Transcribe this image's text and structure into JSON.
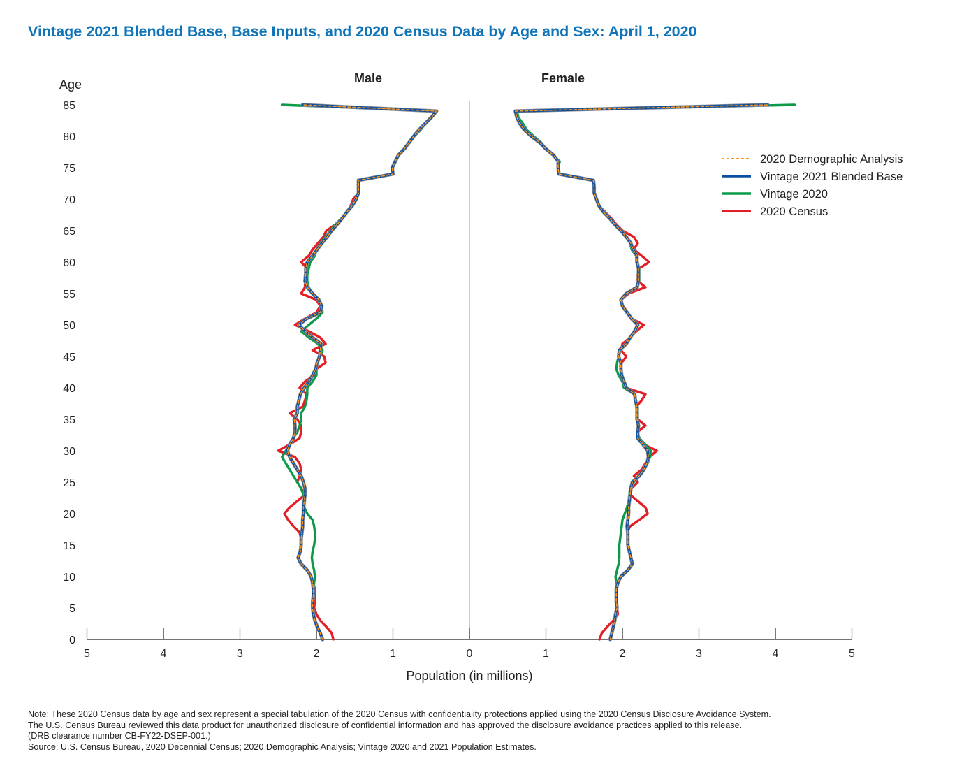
{
  "title": "Vintage 2021 Blended Base, Base Inputs, and 2020 Census Data by Age and Sex: April 1, 2020",
  "notes": {
    "line1": "Note: These 2020 Census data by age and sex represent a special tabulation of the 2020 Census with confidentiality protections applied using the 2020 Census Disclosure Avoidance System.",
    "line2": "The U.S. Census Bureau reviewed this data product for unauthorized disclosure of confidential information and has approved the disclosure avoidance practices applied to this release.",
    "line3": "(DRB clearance number CB-FY22-DSEP-001.)",
    "source": "Source: U.S. Census Bureau, 2020 Decennial Census; 2020 Demographic Analysis; Vintage 2020 and 2021 Population Estimates."
  },
  "chart_data": {
    "type": "line",
    "orientation": "horizontal-population-pyramid",
    "panels": [
      "Male",
      "Female"
    ],
    "xlabel": "Population (in millions)",
    "ylabel": "Age",
    "x_ticks": [
      5,
      4,
      3,
      2,
      1,
      0,
      1,
      2,
      3,
      4,
      5
    ],
    "y_ticks": [
      0,
      5,
      10,
      15,
      20,
      25,
      30,
      35,
      40,
      45,
      50,
      55,
      60,
      65,
      70,
      75,
      80,
      85
    ],
    "xlim": [
      0,
      5
    ],
    "ylim": [
      0,
      85
    ],
    "grid": false,
    "legend_position": "top-right",
    "ages": [
      0,
      1,
      2,
      3,
      4,
      5,
      6,
      7,
      8,
      9,
      10,
      11,
      12,
      13,
      14,
      15,
      16,
      17,
      18,
      19,
      20,
      21,
      22,
      23,
      24,
      25,
      26,
      27,
      28,
      29,
      30,
      31,
      32,
      33,
      34,
      35,
      36,
      37,
      38,
      39,
      40,
      41,
      42,
      43,
      44,
      45,
      46,
      47,
      48,
      49,
      50,
      51,
      52,
      53,
      54,
      55,
      56,
      57,
      58,
      59,
      60,
      61,
      62,
      63,
      64,
      65,
      66,
      67,
      68,
      69,
      70,
      71,
      72,
      73,
      74,
      75,
      76,
      77,
      78,
      79,
      80,
      81,
      82,
      83,
      84,
      85
    ],
    "series": [
      {
        "name": "2020 Demographic Analysis",
        "color": "#f7941d",
        "style": "dashed",
        "male": [
          1.92,
          1.95,
          1.99,
          2.02,
          2.04,
          2.05,
          2.05,
          2.04,
          2.04,
          2.05,
          2.07,
          2.12,
          2.2,
          2.24,
          2.21,
          2.2,
          2.2,
          2.19,
          2.18,
          2.18,
          2.17,
          2.17,
          2.16,
          2.15,
          2.15,
          2.17,
          2.2,
          2.25,
          2.3,
          2.35,
          2.38,
          2.35,
          2.3,
          2.28,
          2.28,
          2.29,
          2.25,
          2.25,
          2.23,
          2.21,
          2.16,
          2.1,
          2.05,
          2.01,
          1.99,
          1.96,
          1.95,
          1.94,
          2.05,
          2.15,
          2.23,
          2.13,
          1.95,
          1.93,
          1.97,
          2.05,
          2.12,
          2.15,
          2.14,
          2.14,
          2.12,
          2.05,
          1.99,
          1.93,
          1.86,
          1.8,
          1.73,
          1.66,
          1.6,
          1.53,
          1.48,
          1.45,
          1.45,
          1.45,
          1.0,
          1.01,
          0.97,
          0.93,
          0.85,
          0.79,
          0.73,
          0.66,
          0.58,
          0.5,
          0.43,
          2.18
        ],
        "female": [
          1.84,
          1.86,
          1.88,
          1.9,
          1.91,
          1.93,
          1.92,
          1.92,
          1.92,
          1.94,
          1.98,
          2.07,
          2.13,
          2.11,
          2.09,
          2.07,
          2.07,
          2.07,
          2.06,
          2.07,
          2.08,
          2.08,
          2.09,
          2.1,
          2.11,
          2.13,
          2.22,
          2.28,
          2.32,
          2.34,
          2.33,
          2.27,
          2.2,
          2.2,
          2.21,
          2.19,
          2.19,
          2.19,
          2.17,
          2.16,
          2.05,
          2.02,
          1.99,
          1.98,
          1.98,
          1.95,
          1.96,
          2.05,
          2.1,
          2.16,
          2.2,
          2.12,
          2.06,
          2.0,
          1.98,
          2.05,
          2.19,
          2.21,
          2.21,
          2.21,
          2.19,
          2.19,
          2.14,
          2.11,
          2.05,
          1.98,
          1.9,
          1.83,
          1.75,
          1.69,
          1.66,
          1.63,
          1.63,
          1.62,
          1.17,
          1.16,
          1.16,
          1.1,
          1.0,
          0.92,
          0.81,
          0.72,
          0.66,
          0.62,
          0.6,
          3.9
        ]
      },
      {
        "name": "Vintage 2021 Blended Base",
        "color": "#0a4ea0",
        "style": "solid",
        "male": [
          1.92,
          1.95,
          1.99,
          2.02,
          2.04,
          2.05,
          2.05,
          2.04,
          2.04,
          2.05,
          2.07,
          2.12,
          2.2,
          2.24,
          2.21,
          2.2,
          2.2,
          2.19,
          2.18,
          2.18,
          2.17,
          2.17,
          2.16,
          2.15,
          2.15,
          2.17,
          2.2,
          2.25,
          2.3,
          2.35,
          2.38,
          2.35,
          2.3,
          2.28,
          2.28,
          2.29,
          2.25,
          2.25,
          2.23,
          2.21,
          2.16,
          2.1,
          2.05,
          2.01,
          1.99,
          1.96,
          1.95,
          1.94,
          2.05,
          2.15,
          2.23,
          2.13,
          1.95,
          1.93,
          1.97,
          2.05,
          2.12,
          2.15,
          2.14,
          2.14,
          2.12,
          2.05,
          1.99,
          1.93,
          1.86,
          1.8,
          1.73,
          1.66,
          1.6,
          1.53,
          1.48,
          1.45,
          1.45,
          1.45,
          1.0,
          1.01,
          0.97,
          0.93,
          0.85,
          0.79,
          0.73,
          0.66,
          0.58,
          0.5,
          0.43,
          2.18
        ],
        "female": [
          1.84,
          1.86,
          1.88,
          1.9,
          1.91,
          1.93,
          1.92,
          1.92,
          1.92,
          1.94,
          1.98,
          2.07,
          2.13,
          2.11,
          2.09,
          2.07,
          2.07,
          2.07,
          2.06,
          2.07,
          2.08,
          2.08,
          2.09,
          2.1,
          2.11,
          2.13,
          2.22,
          2.28,
          2.32,
          2.34,
          2.33,
          2.27,
          2.2,
          2.2,
          2.21,
          2.19,
          2.19,
          2.19,
          2.17,
          2.16,
          2.05,
          2.02,
          1.99,
          1.98,
          1.98,
          1.95,
          1.96,
          2.05,
          2.1,
          2.16,
          2.2,
          2.12,
          2.06,
          2.0,
          1.98,
          2.05,
          2.19,
          2.21,
          2.21,
          2.21,
          2.19,
          2.19,
          2.14,
          2.11,
          2.05,
          1.98,
          1.9,
          1.83,
          1.75,
          1.69,
          1.66,
          1.63,
          1.63,
          1.62,
          1.17,
          1.16,
          1.16,
          1.1,
          1.0,
          0.92,
          0.81,
          0.72,
          0.66,
          0.62,
          0.6,
          3.9
        ]
      },
      {
        "name": "Vintage 2020",
        "color": "#0a9a48",
        "style": "solid",
        "male": [
          1.92,
          1.95,
          1.99,
          2.02,
          2.04,
          2.05,
          2.05,
          2.04,
          2.04,
          2.03,
          2.02,
          2.03,
          2.05,
          2.06,
          2.05,
          2.03,
          2.02,
          2.02,
          2.03,
          2.05,
          2.12,
          2.16,
          2.15,
          2.17,
          2.2,
          2.25,
          2.3,
          2.35,
          2.4,
          2.45,
          2.4,
          2.35,
          2.3,
          2.25,
          2.22,
          2.2,
          2.2,
          2.15,
          2.13,
          2.12,
          2.12,
          2.05,
          2.0,
          2.0,
          2.0,
          1.95,
          1.92,
          1.98,
          2.1,
          2.2,
          2.1,
          2.0,
          1.92,
          1.93,
          1.96,
          2.05,
          2.1,
          2.12,
          2.12,
          2.1,
          2.08,
          2.02,
          2.0,
          1.95,
          1.88,
          1.82,
          1.75,
          1.67,
          1.6,
          1.53,
          1.48,
          1.45,
          1.45,
          1.45,
          1.0,
          1.01,
          0.97,
          0.92,
          0.85,
          0.78,
          0.72,
          0.64,
          0.58,
          0.5,
          0.43,
          2.45
        ],
        "female": [
          1.84,
          1.86,
          1.88,
          1.9,
          1.91,
          1.93,
          1.92,
          1.92,
          1.92,
          1.92,
          1.91,
          1.93,
          1.95,
          1.96,
          1.96,
          1.96,
          1.97,
          1.98,
          1.99,
          2.0,
          2.03,
          2.06,
          2.08,
          2.09,
          2.1,
          2.15,
          2.22,
          2.28,
          2.33,
          2.36,
          2.37,
          2.3,
          2.22,
          2.2,
          2.2,
          2.2,
          2.2,
          2.2,
          2.17,
          2.15,
          2.02,
          2.0,
          1.95,
          1.92,
          1.93,
          1.95,
          1.98,
          2.05,
          2.1,
          2.15,
          2.2,
          2.12,
          2.05,
          2.0,
          1.98,
          2.05,
          2.2,
          2.22,
          2.22,
          2.22,
          2.18,
          2.18,
          2.12,
          2.1,
          2.05,
          1.98,
          1.9,
          1.83,
          1.75,
          1.7,
          1.66,
          1.63,
          1.63,
          1.62,
          1.17,
          1.16,
          1.18,
          1.1,
          1.0,
          0.94,
          0.84,
          0.75,
          0.7,
          0.64,
          0.62,
          4.25
        ]
      },
      {
        "name": "2020 Census",
        "color": "#e31e26",
        "style": "solid",
        "male": [
          1.78,
          1.8,
          1.87,
          1.95,
          2.0,
          2.03,
          2.02,
          2.02,
          2.02,
          2.04,
          2.07,
          2.12,
          2.2,
          2.24,
          2.22,
          2.2,
          2.2,
          2.22,
          2.3,
          2.37,
          2.42,
          2.35,
          2.25,
          2.15,
          2.2,
          2.25,
          2.22,
          2.2,
          2.22,
          2.28,
          2.5,
          2.35,
          2.22,
          2.2,
          2.2,
          2.25,
          2.35,
          2.18,
          2.15,
          2.13,
          2.22,
          2.15,
          2.03,
          2.0,
          1.88,
          1.9,
          2.05,
          1.88,
          1.95,
          2.1,
          2.28,
          2.15,
          2.0,
          1.95,
          2.0,
          2.2,
          2.15,
          2.15,
          2.15,
          2.12,
          2.2,
          2.1,
          2.05,
          1.98,
          1.91,
          1.87,
          1.75,
          1.67,
          1.6,
          1.55,
          1.52,
          1.45,
          1.45,
          1.45,
          1.0,
          1.01,
          0.97,
          0.92,
          0.85,
          0.78,
          0.72,
          0.64,
          0.58,
          0.5,
          0.43,
          2.18
        ],
        "female": [
          1.7,
          1.73,
          1.8,
          1.88,
          1.94,
          1.93,
          1.92,
          1.92,
          1.92,
          1.94,
          1.98,
          2.07,
          2.13,
          2.11,
          2.09,
          2.07,
          2.07,
          2.06,
          2.1,
          2.22,
          2.33,
          2.3,
          2.2,
          2.1,
          2.12,
          2.2,
          2.15,
          2.25,
          2.3,
          2.35,
          2.45,
          2.28,
          2.2,
          2.2,
          2.3,
          2.2,
          2.2,
          2.18,
          2.25,
          2.3,
          2.05,
          2.0,
          1.99,
          1.98,
          1.99,
          2.05,
          1.98,
          2.0,
          2.1,
          2.18,
          2.28,
          2.12,
          2.05,
          2.0,
          1.98,
          2.08,
          2.3,
          2.2,
          2.2,
          2.22,
          2.35,
          2.25,
          2.15,
          2.2,
          2.15,
          2.0,
          1.92,
          1.85,
          1.77,
          1.69,
          1.66,
          1.63,
          1.63,
          1.62,
          1.17,
          1.16,
          1.16,
          1.1,
          1.0,
          0.92,
          0.81,
          0.72,
          0.66,
          0.62,
          0.6,
          3.9
        ]
      }
    ]
  }
}
